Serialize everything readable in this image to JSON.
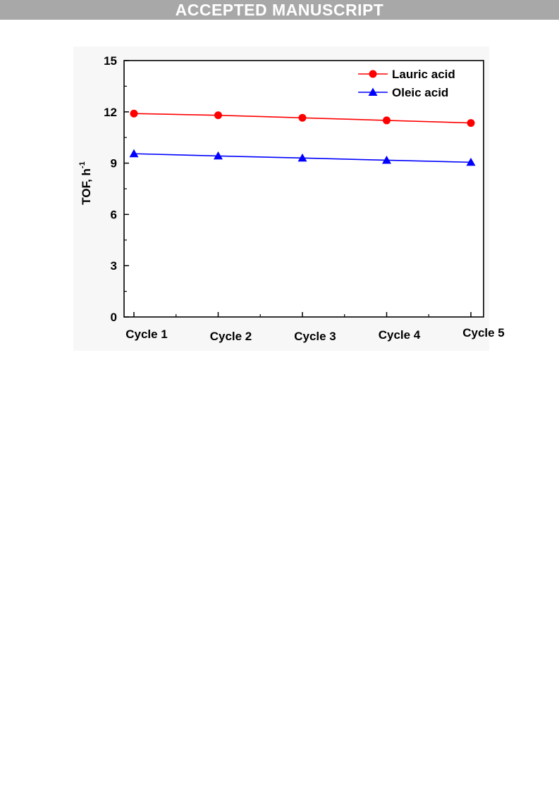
{
  "banner": {
    "text": "ACCEPTED MANUSCRIPT"
  },
  "chart_data": {
    "type": "line",
    "categories": [
      "Cycle 1",
      "Cycle 2",
      "Cycle 3",
      "Cycle 4",
      "Cycle 5"
    ],
    "series": [
      {
        "name": "Lauric acid",
        "values": [
          11.9,
          11.8,
          11.65,
          11.5,
          11.35
        ],
        "color": "#ff0000",
        "marker": "circle"
      },
      {
        "name": "Oleic acid",
        "values": [
          9.55,
          9.42,
          9.3,
          9.17,
          9.05
        ],
        "color": "#0000ff",
        "marker": "triangle"
      }
    ],
    "title": "",
    "xlabel": "",
    "ylabel": "TOF, h",
    "ylabel_superscript": "-1",
    "ylim": [
      0,
      15
    ],
    "yticks": [
      0,
      3,
      6,
      9,
      12,
      15
    ],
    "grid": false,
    "legend": "top-right"
  }
}
